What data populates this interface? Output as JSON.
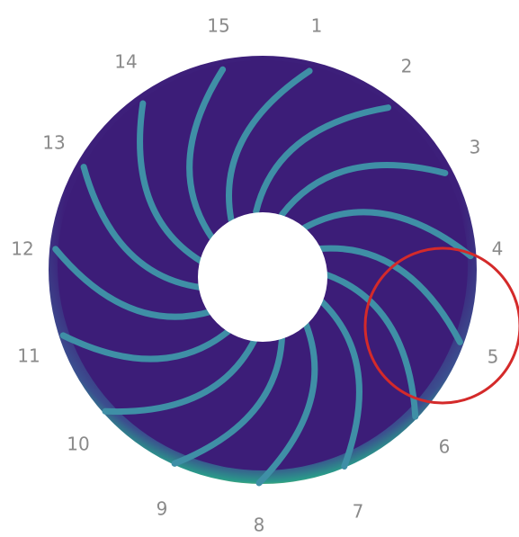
{
  "labels": [
    "15",
    "1",
    "2",
    "3",
    "4",
    "5",
    "6",
    "7",
    "8",
    "9",
    "10",
    "11",
    "12",
    "13",
    "14"
  ]
}
